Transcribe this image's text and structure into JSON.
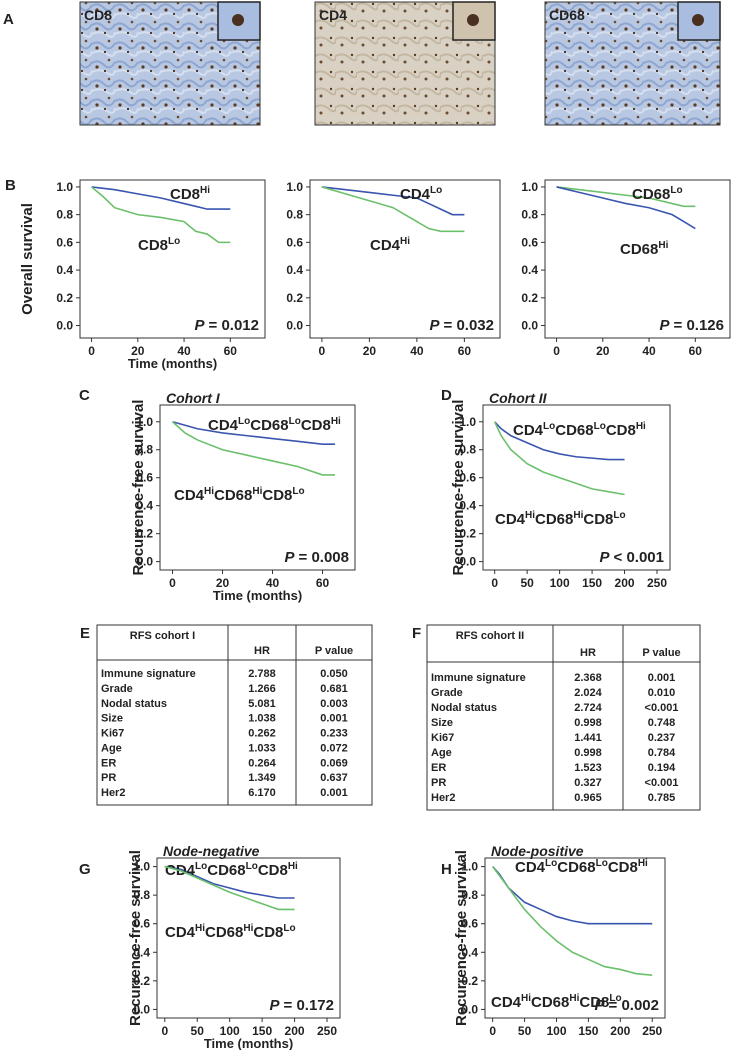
{
  "images": {
    "label": "A",
    "items": [
      {
        "title": "CD8"
      },
      {
        "title": "CD4"
      },
      {
        "title": "CD68"
      }
    ]
  },
  "chart_data": [
    {
      "type": "line",
      "step": true,
      "panel": "B",
      "ylabel": "Overall survival",
      "xlabel": "Time (months)",
      "xlim": [
        -5,
        75
      ],
      "ylim": [
        -0.09,
        1.05
      ],
      "xticks": [
        0,
        20,
        40,
        60
      ],
      "yticks": [
        {
          "value": 0,
          "label": "0.0"
        },
        0.2,
        0.4,
        0.6,
        0.8,
        {
          "value": 1,
          "label": "1.0"
        }
      ],
      "annotation": {
        "italic": "P",
        "text": "= 0.012"
      },
      "series": [
        {
          "name": [
            [
              "CD8",
              "Hi"
            ]
          ],
          "color": "#3a55b0",
          "x": [
            0,
            10,
            20,
            30,
            40,
            45,
            50,
            55,
            60
          ],
          "values": [
            1.0,
            0.98,
            0.95,
            0.92,
            0.88,
            0.86,
            0.84,
            0.84,
            0.84
          ]
        },
        {
          "name": [
            [
              "CD8",
              "Lo"
            ]
          ],
          "color": "#6cc06c",
          "x": [
            0,
            5,
            10,
            20,
            30,
            40,
            45,
            50,
            55,
            60
          ],
          "values": [
            1.0,
            0.93,
            0.85,
            0.8,
            0.78,
            0.75,
            0.68,
            0.66,
            0.6,
            0.6
          ]
        }
      ]
    },
    {
      "type": "line",
      "step": true,
      "xlim": [
        -5,
        75
      ],
      "ylim": [
        -0.09,
        1.05
      ],
      "xticks": [
        0,
        20,
        40,
        60
      ],
      "yticks": [
        {
          "value": 0,
          "label": "0.0"
        },
        0.2,
        0.4,
        0.6,
        0.8,
        {
          "value": 1,
          "label": "1.0"
        }
      ],
      "annotation": {
        "italic": "P",
        "text": "= 0.032"
      },
      "series": [
        {
          "name": [
            [
              "CD4",
              "Lo"
            ]
          ],
          "color": "#3a55b0",
          "x": [
            0,
            10,
            20,
            30,
            40,
            45,
            50,
            55,
            60
          ],
          "values": [
            1.0,
            0.98,
            0.96,
            0.94,
            0.92,
            0.88,
            0.84,
            0.8,
            0.8
          ]
        },
        {
          "name": [
            [
              "CD4",
              "Hi"
            ]
          ],
          "color": "#6cc06c",
          "x": [
            0,
            10,
            20,
            30,
            35,
            40,
            45,
            50,
            60
          ],
          "values": [
            1.0,
            0.95,
            0.9,
            0.85,
            0.8,
            0.75,
            0.7,
            0.68,
            0.68
          ]
        }
      ]
    },
    {
      "type": "line",
      "step": true,
      "xlim": [
        -5,
        75
      ],
      "ylim": [
        -0.09,
        1.05
      ],
      "xticks": [
        0,
        20,
        40,
        60
      ],
      "yticks": [
        {
          "value": 0,
          "label": "0.0"
        },
        0.2,
        0.4,
        0.6,
        0.8,
        {
          "value": 1,
          "label": "1.0"
        }
      ],
      "annotation": {
        "italic": "P",
        "text": "= 0.126"
      },
      "series": [
        {
          "name": [
            [
              "CD68",
              "Lo"
            ]
          ],
          "color": "#6cc06c",
          "x": [
            0,
            10,
            20,
            30,
            40,
            50,
            55,
            60
          ],
          "values": [
            1.0,
            0.98,
            0.96,
            0.94,
            0.92,
            0.88,
            0.86,
            0.86
          ]
        },
        {
          "name": [
            [
              "CD68",
              "Hi"
            ]
          ],
          "color": "#3a55b0",
          "x": [
            0,
            10,
            20,
            30,
            40,
            50,
            55,
            60
          ],
          "values": [
            1.0,
            0.96,
            0.92,
            0.88,
            0.85,
            0.8,
            0.75,
            0.7
          ]
        }
      ]
    },
    {
      "type": "line",
      "step": true,
      "panel": "C",
      "title": "Cohort I",
      "ylabel": "Recurrence-free survival",
      "xlabel": "Time (months)",
      "xlim": [
        -5,
        73
      ],
      "ylim": [
        -0.06,
        1.12
      ],
      "xticks": [
        0,
        20,
        40,
        60
      ],
      "yticks": [
        {
          "value": 0,
          "label": "0.0"
        },
        0.2,
        0.4,
        0.6,
        0.8,
        {
          "value": 1,
          "label": "1.0"
        }
      ],
      "annotation": {
        "italic": "P",
        "text": "= 0.008"
      },
      "series": [
        {
          "name": [
            [
              "CD4",
              "Lo"
            ],
            [
              "CD68",
              "Lo"
            ],
            [
              "CD8",
              "Hi"
            ]
          ],
          "color": "#3a55b0",
          "x": [
            0,
            10,
            20,
            30,
            40,
            50,
            60,
            65
          ],
          "values": [
            1.0,
            0.95,
            0.92,
            0.9,
            0.88,
            0.86,
            0.84,
            0.84
          ]
        },
        {
          "name": [
            [
              "CD4",
              "Hi"
            ],
            [
              "CD68",
              "Hi"
            ],
            [
              "CD8",
              "Lo"
            ]
          ],
          "color": "#6cc06c",
          "x": [
            0,
            5,
            10,
            20,
            30,
            40,
            50,
            60,
            65
          ],
          "values": [
            1.0,
            0.92,
            0.87,
            0.8,
            0.76,
            0.72,
            0.68,
            0.62,
            0.62
          ]
        }
      ]
    },
    {
      "type": "line",
      "step": true,
      "panel": "D",
      "title": "Cohort II",
      "ylabel": "Recurrence-free survival",
      "xlim": [
        -18,
        270
      ],
      "ylim": [
        -0.06,
        1.12
      ],
      "xticks": [
        0,
        50,
        100,
        150,
        200,
        250
      ],
      "yticks": [
        {
          "value": 0,
          "label": "0.0"
        },
        0.2,
        0.4,
        0.6,
        0.8,
        {
          "value": 1,
          "label": "1.0"
        }
      ],
      "annotation": {
        "italic": "P",
        "text": "< 0.001"
      },
      "series": [
        {
          "name": [
            [
              "CD4",
              "Lo"
            ],
            [
              "CD68",
              "Lo"
            ],
            [
              "CD8",
              "Hi"
            ]
          ],
          "color": "#3a55b0",
          "x": [
            0,
            10,
            25,
            50,
            75,
            100,
            125,
            150,
            175,
            200
          ],
          "values": [
            1.0,
            0.95,
            0.9,
            0.85,
            0.8,
            0.77,
            0.75,
            0.74,
            0.73,
            0.73
          ]
        },
        {
          "name": [
            [
              "CD4",
              "Hi"
            ],
            [
              "CD68",
              "Hi"
            ],
            [
              "CD8",
              "Lo"
            ]
          ],
          "color": "#6cc06c",
          "x": [
            0,
            10,
            25,
            50,
            75,
            100,
            125,
            150,
            175,
            200
          ],
          "values": [
            1.0,
            0.9,
            0.8,
            0.7,
            0.64,
            0.6,
            0.56,
            0.52,
            0.5,
            0.48
          ]
        }
      ]
    },
    {
      "type": "line",
      "step": true,
      "panel": "G",
      "title": "Node-negative",
      "ylabel": "Recurrence-free survival",
      "xlabel": "Time (months)",
      "xlim": [
        -12,
        270
      ],
      "ylim": [
        -0.06,
        1.06
      ],
      "xticks": [
        0,
        50,
        100,
        150,
        200,
        250
      ],
      "yticks": [
        {
          "value": 0,
          "label": "0.0"
        },
        0.2,
        0.4,
        0.6,
        0.8,
        {
          "value": 1,
          "label": "1.0"
        }
      ],
      "annotation": {
        "italic": "P",
        "text": "= 0.172"
      },
      "series": [
        {
          "name": [
            [
              "CD4",
              "Lo"
            ],
            [
              "CD68",
              "Lo"
            ],
            [
              "CD8",
              "Hi"
            ]
          ],
          "color": "#3a55b0",
          "x": [
            0,
            25,
            50,
            75,
            100,
            125,
            150,
            175,
            200
          ],
          "values": [
            1.0,
            0.98,
            0.93,
            0.88,
            0.85,
            0.82,
            0.8,
            0.78,
            0.78
          ]
        },
        {
          "name": [
            [
              "CD4",
              "Hi"
            ],
            [
              "CD68",
              "Hi"
            ],
            [
              "CD8",
              "Lo"
            ]
          ],
          "color": "#6cc06c",
          "x": [
            0,
            25,
            50,
            75,
            100,
            125,
            150,
            175,
            200
          ],
          "values": [
            1.0,
            0.97,
            0.92,
            0.87,
            0.82,
            0.78,
            0.74,
            0.7,
            0.7
          ]
        }
      ]
    },
    {
      "type": "line",
      "step": true,
      "panel": "H",
      "title": "Node-positive",
      "ylabel": "Recurrence-free survival",
      "xlim": [
        -12,
        270
      ],
      "ylim": [
        -0.06,
        1.06
      ],
      "xticks": [
        0,
        50,
        100,
        150,
        200,
        250
      ],
      "yticks": [
        {
          "value": 0,
          "label": "0.0"
        },
        0.2,
        0.4,
        0.6,
        0.8,
        {
          "value": 1,
          "label": "1.0"
        }
      ],
      "annotation": {
        "italic": "P",
        "text": "= 0.002"
      },
      "series": [
        {
          "name": [
            [
              "CD4",
              "Lo"
            ],
            [
              "CD68",
              "Lo"
            ],
            [
              "CD8",
              "Hi"
            ]
          ],
          "color": "#3a55b0",
          "x": [
            0,
            10,
            25,
            50,
            75,
            100,
            125,
            150,
            175,
            200,
            250
          ],
          "values": [
            1.0,
            0.95,
            0.85,
            0.75,
            0.7,
            0.65,
            0.62,
            0.6,
            0.6,
            0.6,
            0.6
          ]
        },
        {
          "name": [
            [
              "CD4",
              "Hi"
            ],
            [
              "CD68",
              "Hi"
            ],
            [
              "CD8",
              "Lo"
            ]
          ],
          "color": "#6cc06c",
          "x": [
            0,
            25,
            50,
            75,
            100,
            125,
            150,
            175,
            200,
            225,
            250
          ],
          "values": [
            1.0,
            0.85,
            0.7,
            0.58,
            0.48,
            0.4,
            0.35,
            0.3,
            0.28,
            0.25,
            0.24
          ]
        }
      ]
    }
  ],
  "tables": [
    {
      "label": "E",
      "header": [
        "RFS cohort I",
        "HR",
        "P value"
      ],
      "rows": [
        [
          "Immune signature",
          "2.788",
          "0.050"
        ],
        [
          "Grade",
          "1.266",
          "0.681"
        ],
        [
          "Nodal status",
          "5.081",
          "0.003"
        ],
        [
          "Size",
          "1.038",
          "0.001"
        ],
        [
          "Ki67",
          "0.262",
          "0.233"
        ],
        [
          "Age",
          "1.033",
          "0.072"
        ],
        [
          "ER",
          "0.264",
          "0.069"
        ],
        [
          "PR",
          "1.349",
          "0.637"
        ],
        [
          "Her2",
          "6.170",
          "0.001"
        ]
      ]
    },
    {
      "label": "F",
      "header": [
        "RFS cohort II",
        "HR",
        "P value"
      ],
      "rows": [
        [
          "Immune signature",
          "2.368",
          "0.001"
        ],
        [
          "Grade",
          "2.024",
          "0.010"
        ],
        [
          "Nodal status",
          "2.724",
          "<0.001"
        ],
        [
          "Size",
          "0.998",
          "0.748"
        ],
        [
          "Ki67",
          "1.441",
          "0.237"
        ],
        [
          "Age",
          "0.998",
          "0.784"
        ],
        [
          "ER",
          "1.523",
          "0.194"
        ],
        [
          "PR",
          "0.327",
          "<0.001"
        ],
        [
          "Her2",
          "0.965",
          "0.785"
        ]
      ]
    }
  ]
}
